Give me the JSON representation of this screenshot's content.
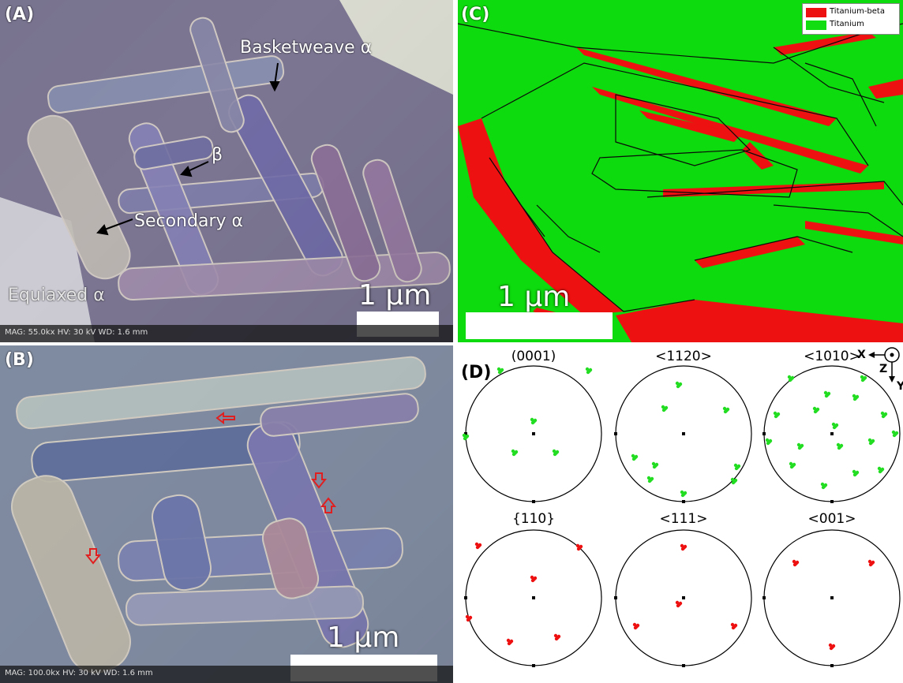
{
  "panelA": {
    "label": "(A)",
    "annotations": {
      "basketweave": "Basketweave α",
      "beta": "β",
      "secondary": "Secondary α",
      "equiaxed": "Equiaxed α"
    },
    "scale": "1 μm",
    "databar": "MAG: 55.0kx   HV: 30 kV   WD: 1.6 mm"
  },
  "panelB": {
    "label": "(B)",
    "scale": "1 μm",
    "databar": "MAG: 100.0kx   HV: 30 kV   WD: 1.6 mm",
    "arrow_color": "#e02020"
  },
  "panelC": {
    "label": "(C)",
    "scale": "1 μm",
    "legend": [
      {
        "name": "Titanium-beta",
        "color": "#ee1111"
      },
      {
        "name": "Titanium",
        "color": "#11dd11"
      }
    ]
  },
  "panelD": {
    "label": "(D)",
    "alpha_color": "#22dd22",
    "beta_color": "#ee1111",
    "axes": {
      "x": "X",
      "y": "Y",
      "z": "Z"
    },
    "pole_figures": [
      {
        "title": "(0001)",
        "phase": "alpha"
      },
      {
        "title": "<1120>",
        "phase": "alpha"
      },
      {
        "title": "<1010>",
        "phase": "alpha"
      },
      {
        "title": "{110}",
        "phase": "beta"
      },
      {
        "title": "<111>",
        "phase": "beta"
      },
      {
        "title": "<001>",
        "phase": "beta"
      }
    ]
  }
}
